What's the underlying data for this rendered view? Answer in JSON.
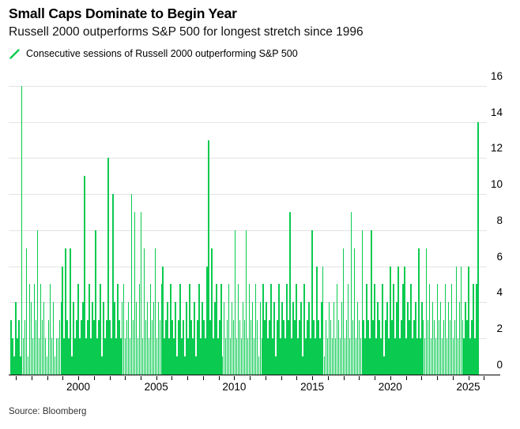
{
  "header": {
    "title": "Small Caps Dominate to Begin Year",
    "subtitle": "Russell 2000 outperforms S&P 500 for longest stretch since 1996"
  },
  "legend": {
    "marker": "green-slash-icon",
    "label": "Consecutive sessions of Russell 2000 outperforming S&P 500"
  },
  "source": "Source: Bloomberg",
  "colors": {
    "bar_green": "#0ACA50",
    "gridline": "#e3e3e3",
    "axis": "#000000",
    "text": "#000000"
  },
  "chart_data": {
    "type": "bar",
    "title": "Consecutive sessions of Russell 2000 outperforming S&P 500",
    "xlabel": "",
    "ylabel": "",
    "ylim": [
      0,
      16
    ],
    "y_ticks": [
      0,
      2,
      4,
      6,
      8,
      10,
      12,
      14,
      16
    ],
    "y_axis_side": "right",
    "grid": true,
    "x_start_year": 1995.6,
    "x_end_year": 2026.1,
    "x_minor_tick_years": [
      1996,
      2026
    ],
    "x_tick_labels": [
      "2000",
      "2005",
      "2010",
      "2015",
      "2020",
      "2025"
    ],
    "notable_points": {
      "record_streak_1996": 16,
      "latest_streak_2026": 14
    },
    "values": [
      3,
      2,
      1,
      4,
      2,
      3,
      1,
      16,
      2,
      3,
      7,
      1,
      5,
      4,
      2,
      5,
      3,
      8,
      2,
      5,
      3,
      4,
      2,
      1,
      3,
      5,
      2,
      4,
      1,
      2,
      2,
      3,
      4,
      6,
      2,
      7,
      3,
      2,
      7,
      1,
      4,
      2,
      3,
      5,
      2,
      3,
      4,
      11,
      2,
      3,
      5,
      2,
      4,
      3,
      8,
      2,
      3,
      5,
      1,
      4,
      2,
      3,
      12,
      3,
      2,
      10,
      4,
      2,
      5,
      3,
      2,
      4,
      5,
      2,
      3,
      4,
      2,
      10,
      3,
      9,
      4,
      2,
      5,
      9,
      2,
      7,
      3,
      4,
      2,
      5,
      3,
      4,
      7,
      2,
      4,
      3,
      5,
      6,
      2,
      3,
      4,
      2,
      5,
      3,
      2,
      4,
      1,
      3,
      5,
      2,
      3,
      1,
      4,
      2,
      5,
      3,
      2,
      4,
      1,
      3,
      5,
      2,
      4,
      3,
      2,
      6,
      13,
      3,
      7,
      2,
      4,
      5,
      2,
      3,
      5,
      1,
      4,
      2,
      3,
      5,
      2,
      4,
      3,
      8,
      2,
      5,
      3,
      2,
      4,
      3,
      8,
      2,
      5,
      3,
      4,
      2,
      5,
      3,
      1,
      4,
      2,
      5,
      3,
      4,
      2,
      3,
      5,
      2,
      4,
      1,
      3,
      5,
      2,
      4,
      3,
      2,
      5,
      3,
      9,
      2,
      4,
      3,
      5,
      2,
      3,
      4,
      1,
      5,
      2,
      3,
      4,
      2,
      8,
      3,
      2,
      6,
      3,
      2,
      4,
      6,
      1,
      3,
      2,
      4,
      3,
      2,
      4,
      2,
      5,
      3,
      2,
      4,
      7,
      2,
      3,
      5,
      2,
      9,
      3,
      7,
      2,
      4,
      3,
      2,
      8,
      3,
      2,
      5,
      3,
      2,
      8,
      3,
      5,
      2,
      4,
      3,
      2,
      5,
      1,
      3,
      4,
      2,
      6,
      3,
      5,
      2,
      4,
      6,
      2,
      3,
      5,
      6,
      2,
      4,
      3,
      5,
      2,
      3,
      4,
      2,
      7,
      2,
      4,
      3,
      2,
      7,
      3,
      5,
      2,
      4,
      3,
      2,
      5,
      3,
      4,
      2,
      3,
      5,
      2,
      4,
      3,
      5,
      2,
      3,
      6,
      2,
      4,
      6,
      3,
      2,
      4,
      3,
      6,
      2,
      3,
      5,
      2,
      5,
      14
    ]
  }
}
